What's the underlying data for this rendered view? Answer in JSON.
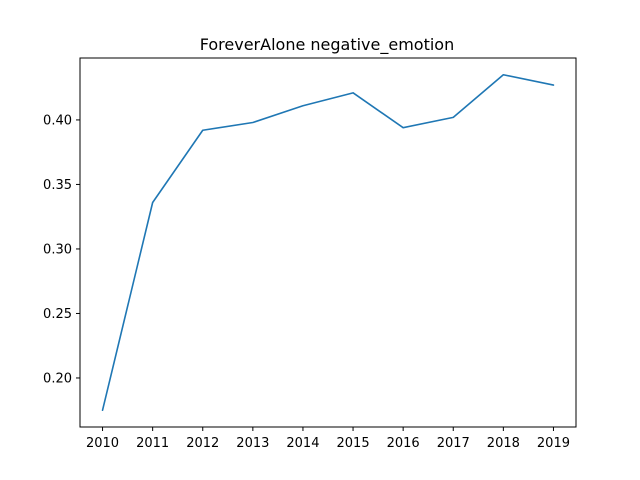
{
  "chart_data": {
    "type": "line",
    "title": "ForeverAlone negative_emotion",
    "xlabel": "",
    "ylabel": "",
    "x": [
      2010,
      2011,
      2012,
      2013,
      2014,
      2015,
      2016,
      2017,
      2018,
      2019
    ],
    "series": [
      {
        "values": [
          0.175,
          0.336,
          0.392,
          0.398,
          0.411,
          0.421,
          0.394,
          0.402,
          0.435,
          0.427
        ],
        "color": "#1f77b4"
      }
    ],
    "xticks": [
      "2010",
      "2011",
      "2012",
      "2013",
      "2014",
      "2015",
      "2016",
      "2017",
      "2018",
      "2019"
    ],
    "yticks": [
      "0.20",
      "0.25",
      "0.30",
      "0.35",
      "0.40"
    ],
    "ytick_values": [
      0.2,
      0.25,
      0.3,
      0.35,
      0.4
    ],
    "xlim": [
      2009.55,
      2019.45
    ],
    "ylim": [
      0.162,
      0.448
    ],
    "grid": false,
    "legend": "none"
  }
}
